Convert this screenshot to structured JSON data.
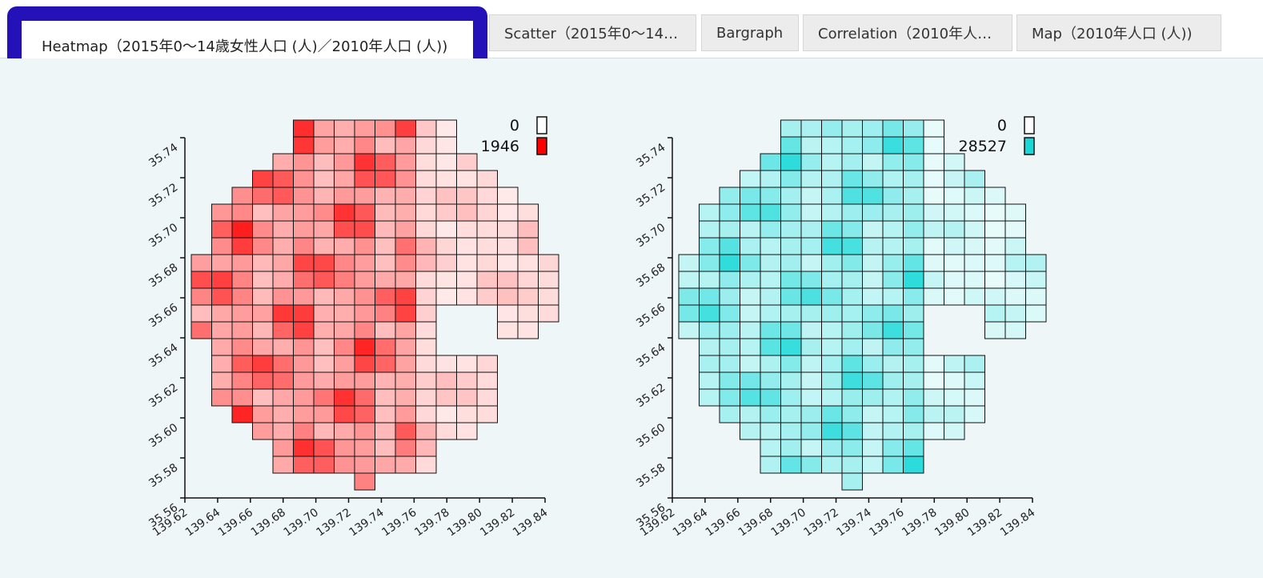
{
  "tabs": [
    {
      "label": "Heatmap（2015年0～14歳女性人口 (人)／2010年人口 (人))",
      "active": true
    },
    {
      "label": "Scatter（2015年0～14…",
      "active": false
    },
    {
      "label": "Bargraph",
      "active": false
    },
    {
      "label": "Correlation（2010年人…",
      "active": false
    },
    {
      "label": "Map（2010年人口 (人))",
      "active": false
    }
  ],
  "colors": {
    "highlight": "#2411b8",
    "content_bg": "#eef6f7",
    "left_max": "#ff0000",
    "right_max": "#1ad8d8"
  },
  "chart_data": [
    {
      "type": "heatmap",
      "x_ticks": [
        "139.62",
        "139.64",
        "139.66",
        "139.68",
        "139.70",
        "139.72",
        "139.74",
        "139.76",
        "139.78",
        "139.80",
        "139.82",
        "139.84"
      ],
      "y_ticks": [
        "35.56",
        "35.58",
        "35.60",
        "35.62",
        "35.64",
        "35.66",
        "35.68",
        "35.70",
        "35.72",
        "35.74"
      ],
      "xlim": [
        139.62,
        139.84
      ],
      "ylim": [
        35.56,
        35.74
      ],
      "legend_min": "0",
      "legend_max": "1946",
      "color": "#ff0000"
    },
    {
      "type": "heatmap",
      "x_ticks": [
        "139.62",
        "139.64",
        "139.66",
        "139.68",
        "139.70",
        "139.72",
        "139.74",
        "139.76",
        "139.78",
        "139.80",
        "139.82",
        "139.84"
      ],
      "y_ticks": [
        "35.56",
        "35.58",
        "35.60",
        "35.62",
        "35.64",
        "35.66",
        "35.68",
        "35.70",
        "35.72",
        "35.74"
      ],
      "xlim": [
        139.62,
        139.84
      ],
      "ylim": [
        35.56,
        35.74
      ],
      "legend_min": "0",
      "legend_max": "28527",
      "color": "#1ad8d8"
    }
  ]
}
